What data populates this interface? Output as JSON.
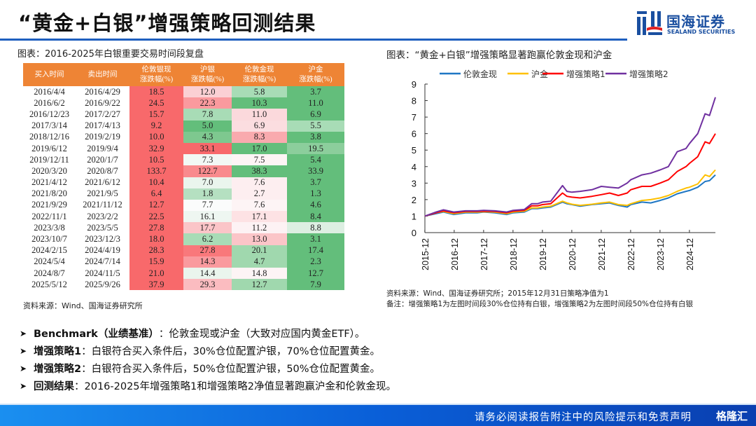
{
  "header": {
    "title": "“黄金+白银”增强策略回测结果",
    "logo_cn": "国海证券",
    "logo_en": "SEALAND SECURITIES"
  },
  "left_panel": {
    "caption": "图表：2016-2025年白银重要交易时间段复盘",
    "columns": [
      {
        "l1": "买入时间",
        "l2": ""
      },
      {
        "l1": "卖出时间",
        "l2": ""
      },
      {
        "l1": "伦敦银现",
        "l2": "涨跌幅(%)"
      },
      {
        "l1": "沪银",
        "l2": "涨跌幅(%)"
      },
      {
        "l1": "伦敦金现",
        "l2": "涨跌幅(%)"
      },
      {
        "l1": "沪金",
        "l2": "涨跌幅(%)"
      }
    ],
    "rows": [
      {
        "buy": "2016/4/4",
        "sell": "2016/4/29",
        "v": [
          "18.5",
          "12.0",
          "5.8",
          "3.7"
        ],
        "c": [
          "#f8696b",
          "#fbd0d4",
          "#a8dcb6",
          "#63be7b"
        ]
      },
      {
        "buy": "2016/6/2",
        "sell": "2016/9/22",
        "v": [
          "24.5",
          "22.3",
          "10.3",
          "11.0"
        ],
        "c": [
          "#f8696b",
          "#fa9a9e",
          "#63be7b",
          "#63be7b"
        ]
      },
      {
        "buy": "2016/12/23",
        "sell": "2017/2/27",
        "v": [
          "15.7",
          "7.8",
          "11.0",
          "6.9"
        ],
        "c": [
          "#f8696b",
          "#a8dcb6",
          "#fbd9dc",
          "#63be7b"
        ]
      },
      {
        "buy": "2017/3/14",
        "sell": "2017/4/13",
        "v": [
          "9.2",
          "5.0",
          "6.9",
          "5.5"
        ],
        "c": [
          "#f8696b",
          "#63be7b",
          "#fbdde0",
          "#a8dcb6"
        ]
      },
      {
        "buy": "2018/12/16",
        "sell": "2019/2/19",
        "v": [
          "10.0",
          "4.3",
          "8.3",
          "3.8"
        ],
        "c": [
          "#f8696b",
          "#7ec88f",
          "#f9aaae",
          "#63be7b"
        ]
      },
      {
        "buy": "2019/6/12",
        "sell": "2019/9/4",
        "v": [
          "32.9",
          "33.1",
          "17.0",
          "19.5"
        ],
        "c": [
          "#f8696b",
          "#f8696b",
          "#63be7b",
          "#8cce9c"
        ]
      },
      {
        "buy": "2019/12/11",
        "sell": "2020/1/7",
        "v": [
          "10.5",
          "7.3",
          "7.5",
          "5.4"
        ],
        "c": [
          "#f8696b",
          "#f2f8f4",
          "#fdf4f5",
          "#63be7b"
        ]
      },
      {
        "buy": "2020/3/20",
        "sell": "2020/8/7",
        "v": [
          "133.7",
          "122.7",
          "38.3",
          "33.9"
        ],
        "c": [
          "#f8696b",
          "#f98a8d",
          "#63be7b",
          "#63be7b"
        ]
      },
      {
        "buy": "2021/4/12",
        "sell": "2021/6/12",
        "v": [
          "10.4",
          "7.0",
          "7.6",
          "3.7"
        ],
        "c": [
          "#f8696b",
          "#eaf5ed",
          "#fdeef0",
          "#63be7b"
        ]
      },
      {
        "buy": "2021/8/20",
        "sell": "2021/9/5",
        "v": [
          "6.4",
          "1.8",
          "2.7",
          "1.3"
        ],
        "c": [
          "#f8696b",
          "#b5e0c1",
          "#fdeef0",
          "#63be7b"
        ]
      },
      {
        "buy": "2021/9/29",
        "sell": "2021/11/12",
        "v": [
          "12.7",
          "7.7",
          "7.6",
          "4.6"
        ],
        "c": [
          "#f8696b",
          "#fbfcfc",
          "#fdf4f5",
          "#63be7b"
        ]
      },
      {
        "buy": "2022/11/1",
        "sell": "2023/2/2",
        "v": [
          "22.5",
          "16.1",
          "17.1",
          "8.4"
        ],
        "c": [
          "#f8696b",
          "#eef6f1",
          "#fde2e4",
          "#63be7b"
        ]
      },
      {
        "buy": "2023/3/8",
        "sell": "2023/5/5",
        "v": [
          "27.8",
          "17.7",
          "11.2",
          "8.8"
        ],
        "c": [
          "#f8696b",
          "#fbc5c8",
          "#fdf2f4",
          "#ddefe2"
        ]
      },
      {
        "buy": "2023/10/7",
        "sell": "2023/12/3",
        "v": [
          "18.0",
          "6.2",
          "13.0",
          "3.1"
        ],
        "c": [
          "#f8696b",
          "#a8dcb6",
          "#fbc5c8",
          "#63be7b"
        ]
      },
      {
        "buy": "2024/2/15",
        "sell": "2024/4/19",
        "v": [
          "28.3",
          "27.8",
          "20.1",
          "17.4"
        ],
        "c": [
          "#f8696b",
          "#f9787b",
          "#a0d8ae",
          "#63be7b"
        ]
      },
      {
        "buy": "2024/5/4",
        "sell": "2024/7/14",
        "v": [
          "15.9",
          "14.3",
          "4.7",
          "2.3"
        ],
        "c": [
          "#f8696b",
          "#fa9a9e",
          "#a0d8ae",
          "#63be7b"
        ]
      },
      {
        "buy": "2024/8/7",
        "sell": "2024/11/5",
        "v": [
          "21.0",
          "14.4",
          "14.8",
          "12.7"
        ],
        "c": [
          "#f8696b",
          "#eaf5ed",
          "#fdf4f5",
          "#63be7b"
        ]
      },
      {
        "buy": "2025/5/12",
        "sell": "2025/9/26",
        "v": [
          "37.9",
          "29.3",
          "12.7",
          "7.9"
        ],
        "c": [
          "#f8696b",
          "#fbbcc0",
          "#a0d8ae",
          "#63be7b"
        ]
      }
    ],
    "source": "资料来源：Wind、国海证券研究所"
  },
  "right_panel": {
    "caption": "图表：“黄金+白银”增强策略显著跑赢伦敦金现和沪金",
    "source": "资料来源：Wind、国海证券研究所；2015年12月31日策略净值为1",
    "note": "备注：增强策略1为左图时间段30%仓位持有白银，增强策略2为左图时间段50%仓位持有白银"
  },
  "chart_data": {
    "type": "line",
    "title": "",
    "xlabel": "",
    "ylabel": "",
    "ylim": [
      0,
      9
    ],
    "yticks": [
      "0",
      "1",
      "2",
      "3",
      "4",
      "5",
      "6",
      "7",
      "8",
      "9"
    ],
    "xticks": [
      "2015-12",
      "2016-12",
      "2017-12",
      "2018-12",
      "2019-12",
      "2020-12",
      "2021-12",
      "2022-12",
      "2023-12",
      "2024-12"
    ],
    "x_range": [
      2015.92,
      2025.8
    ],
    "legend_position": "top",
    "grid": false,
    "x": [
      2015.92,
      2016.3,
      2016.55,
      2016.9,
      2017.3,
      2017.7,
      2017.92,
      2018.3,
      2018.7,
      2018.92,
      2019.3,
      2019.55,
      2019.75,
      2019.92,
      2020.2,
      2020.6,
      2020.75,
      2020.92,
      2021.2,
      2021.6,
      2021.92,
      2022.2,
      2022.5,
      2022.8,
      2022.92,
      2023.3,
      2023.6,
      2023.92,
      2024.2,
      2024.5,
      2024.8,
      2024.92,
      2025.2,
      2025.45,
      2025.6,
      2025.8
    ],
    "series": [
      {
        "name": "伦敦金现",
        "color": "#1f77c4",
        "values": [
          1.0,
          1.15,
          1.25,
          1.1,
          1.2,
          1.2,
          1.25,
          1.2,
          1.1,
          1.2,
          1.25,
          1.45,
          1.45,
          1.5,
          1.55,
          1.85,
          1.75,
          1.7,
          1.6,
          1.7,
          1.75,
          1.8,
          1.65,
          1.55,
          1.7,
          1.85,
          1.8,
          1.95,
          2.1,
          2.35,
          2.5,
          2.55,
          2.75,
          3.1,
          3.15,
          3.5
        ]
      },
      {
        "name": "沪金",
        "color": "#ffc000",
        "values": [
          1.0,
          1.2,
          1.28,
          1.15,
          1.25,
          1.25,
          1.27,
          1.25,
          1.15,
          1.25,
          1.3,
          1.5,
          1.5,
          1.55,
          1.6,
          1.9,
          1.8,
          1.72,
          1.65,
          1.72,
          1.8,
          1.85,
          1.7,
          1.65,
          1.75,
          1.95,
          2.0,
          2.1,
          2.25,
          2.5,
          2.7,
          2.75,
          2.95,
          3.5,
          3.4,
          3.8
        ]
      },
      {
        "name": "增强策略1",
        "color": "#ff0000",
        "values": [
          1.0,
          1.2,
          1.32,
          1.2,
          1.28,
          1.28,
          1.3,
          1.28,
          1.2,
          1.3,
          1.35,
          1.62,
          1.62,
          1.7,
          1.75,
          2.4,
          2.2,
          2.15,
          2.1,
          2.2,
          2.3,
          2.4,
          2.25,
          2.4,
          2.6,
          2.8,
          2.8,
          3.0,
          3.2,
          3.7,
          4.0,
          4.2,
          4.6,
          5.5,
          5.4,
          6.0
        ]
      },
      {
        "name": "增强策略2",
        "color": "#7030a0",
        "values": [
          1.0,
          1.25,
          1.38,
          1.25,
          1.32,
          1.32,
          1.35,
          1.32,
          1.25,
          1.35,
          1.4,
          1.75,
          1.75,
          1.85,
          1.9,
          2.85,
          2.5,
          2.45,
          2.5,
          2.6,
          2.8,
          2.75,
          2.7,
          3.0,
          3.2,
          3.5,
          3.6,
          3.8,
          4.0,
          4.9,
          5.1,
          5.4,
          6.0,
          7.2,
          7.1,
          8.2
        ]
      }
    ]
  },
  "bullets": [
    {
      "key": "Benchmark（业绩基准）",
      "text": "：伦敦金现或沪金（大致对应国内黄金ETF）。"
    },
    {
      "key": "增强策略1",
      "text": "：白银符合买入条件后，30%仓位配置沪银，70%仓位配置黄金。"
    },
    {
      "key": "增强策略2",
      "text": "：白银符合买入条件后，50%仓位配置沪银，50%仓位配置黄金。"
    },
    {
      "key": "回测结果",
      "text": "：2016-2025年增强策略1和增强策略2净值显著跑赢沪金和伦敦金现。"
    }
  ],
  "bullet_symbol": "➤",
  "footer": {
    "text": "请务必阅读报告附注中的风险提示和免责声明",
    "watermark": "格隆汇"
  }
}
